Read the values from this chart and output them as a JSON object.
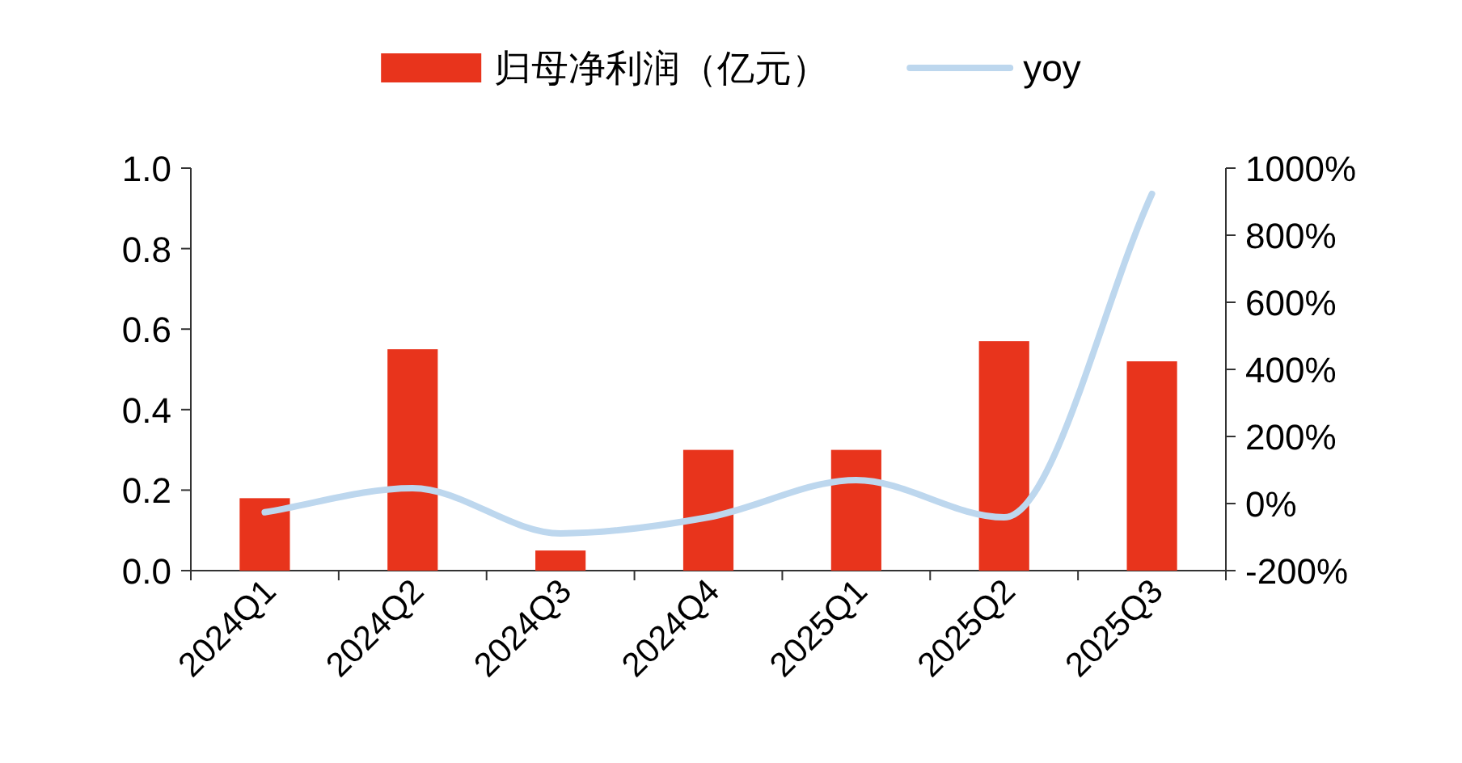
{
  "chart_data": {
    "type": "bar",
    "categories": [
      "2024Q1",
      "2024Q2",
      "2024Q3",
      "2024Q4",
      "2025Q1",
      "2025Q2",
      "2025Q3"
    ],
    "series": [
      {
        "name": "归母净利润（亿元）",
        "color": "#e8341c",
        "values": [
          0.18,
          0.55,
          0.05,
          0.3,
          0.3,
          0.57,
          0.52
        ]
      },
      {
        "name": "yoy",
        "type": "line",
        "axis": "y2",
        "color": "#bdd7ee",
        "values": [
          -26,
          46,
          -89,
          -41,
          70,
          -41,
          923
        ]
      }
    ],
    "ylim": [
      0,
      1.0
    ],
    "yticks": [
      {
        "value": 0,
        "label": "0.0"
      },
      {
        "value": 0.2,
        "label": "0.2"
      },
      {
        "value": 0.4,
        "label": "0.4"
      },
      {
        "value": 0.6,
        "label": "0.6"
      },
      {
        "value": 0.8,
        "label": "0.8"
      },
      {
        "value": 1.0,
        "label": "1.0"
      }
    ],
    "y2lim": [
      -200,
      1000
    ],
    "y2ticks": [
      {
        "value": -200,
        "label": "-200%"
      },
      {
        "value": 0,
        "label": "0%"
      },
      {
        "value": 200,
        "label": "200%"
      },
      {
        "value": 400,
        "label": "400%"
      },
      {
        "value": 600,
        "label": "600%"
      },
      {
        "value": 800,
        "label": "800%"
      },
      {
        "value": 1000,
        "label": "1000%"
      }
    ],
    "legend": "top",
    "grid": false
  }
}
